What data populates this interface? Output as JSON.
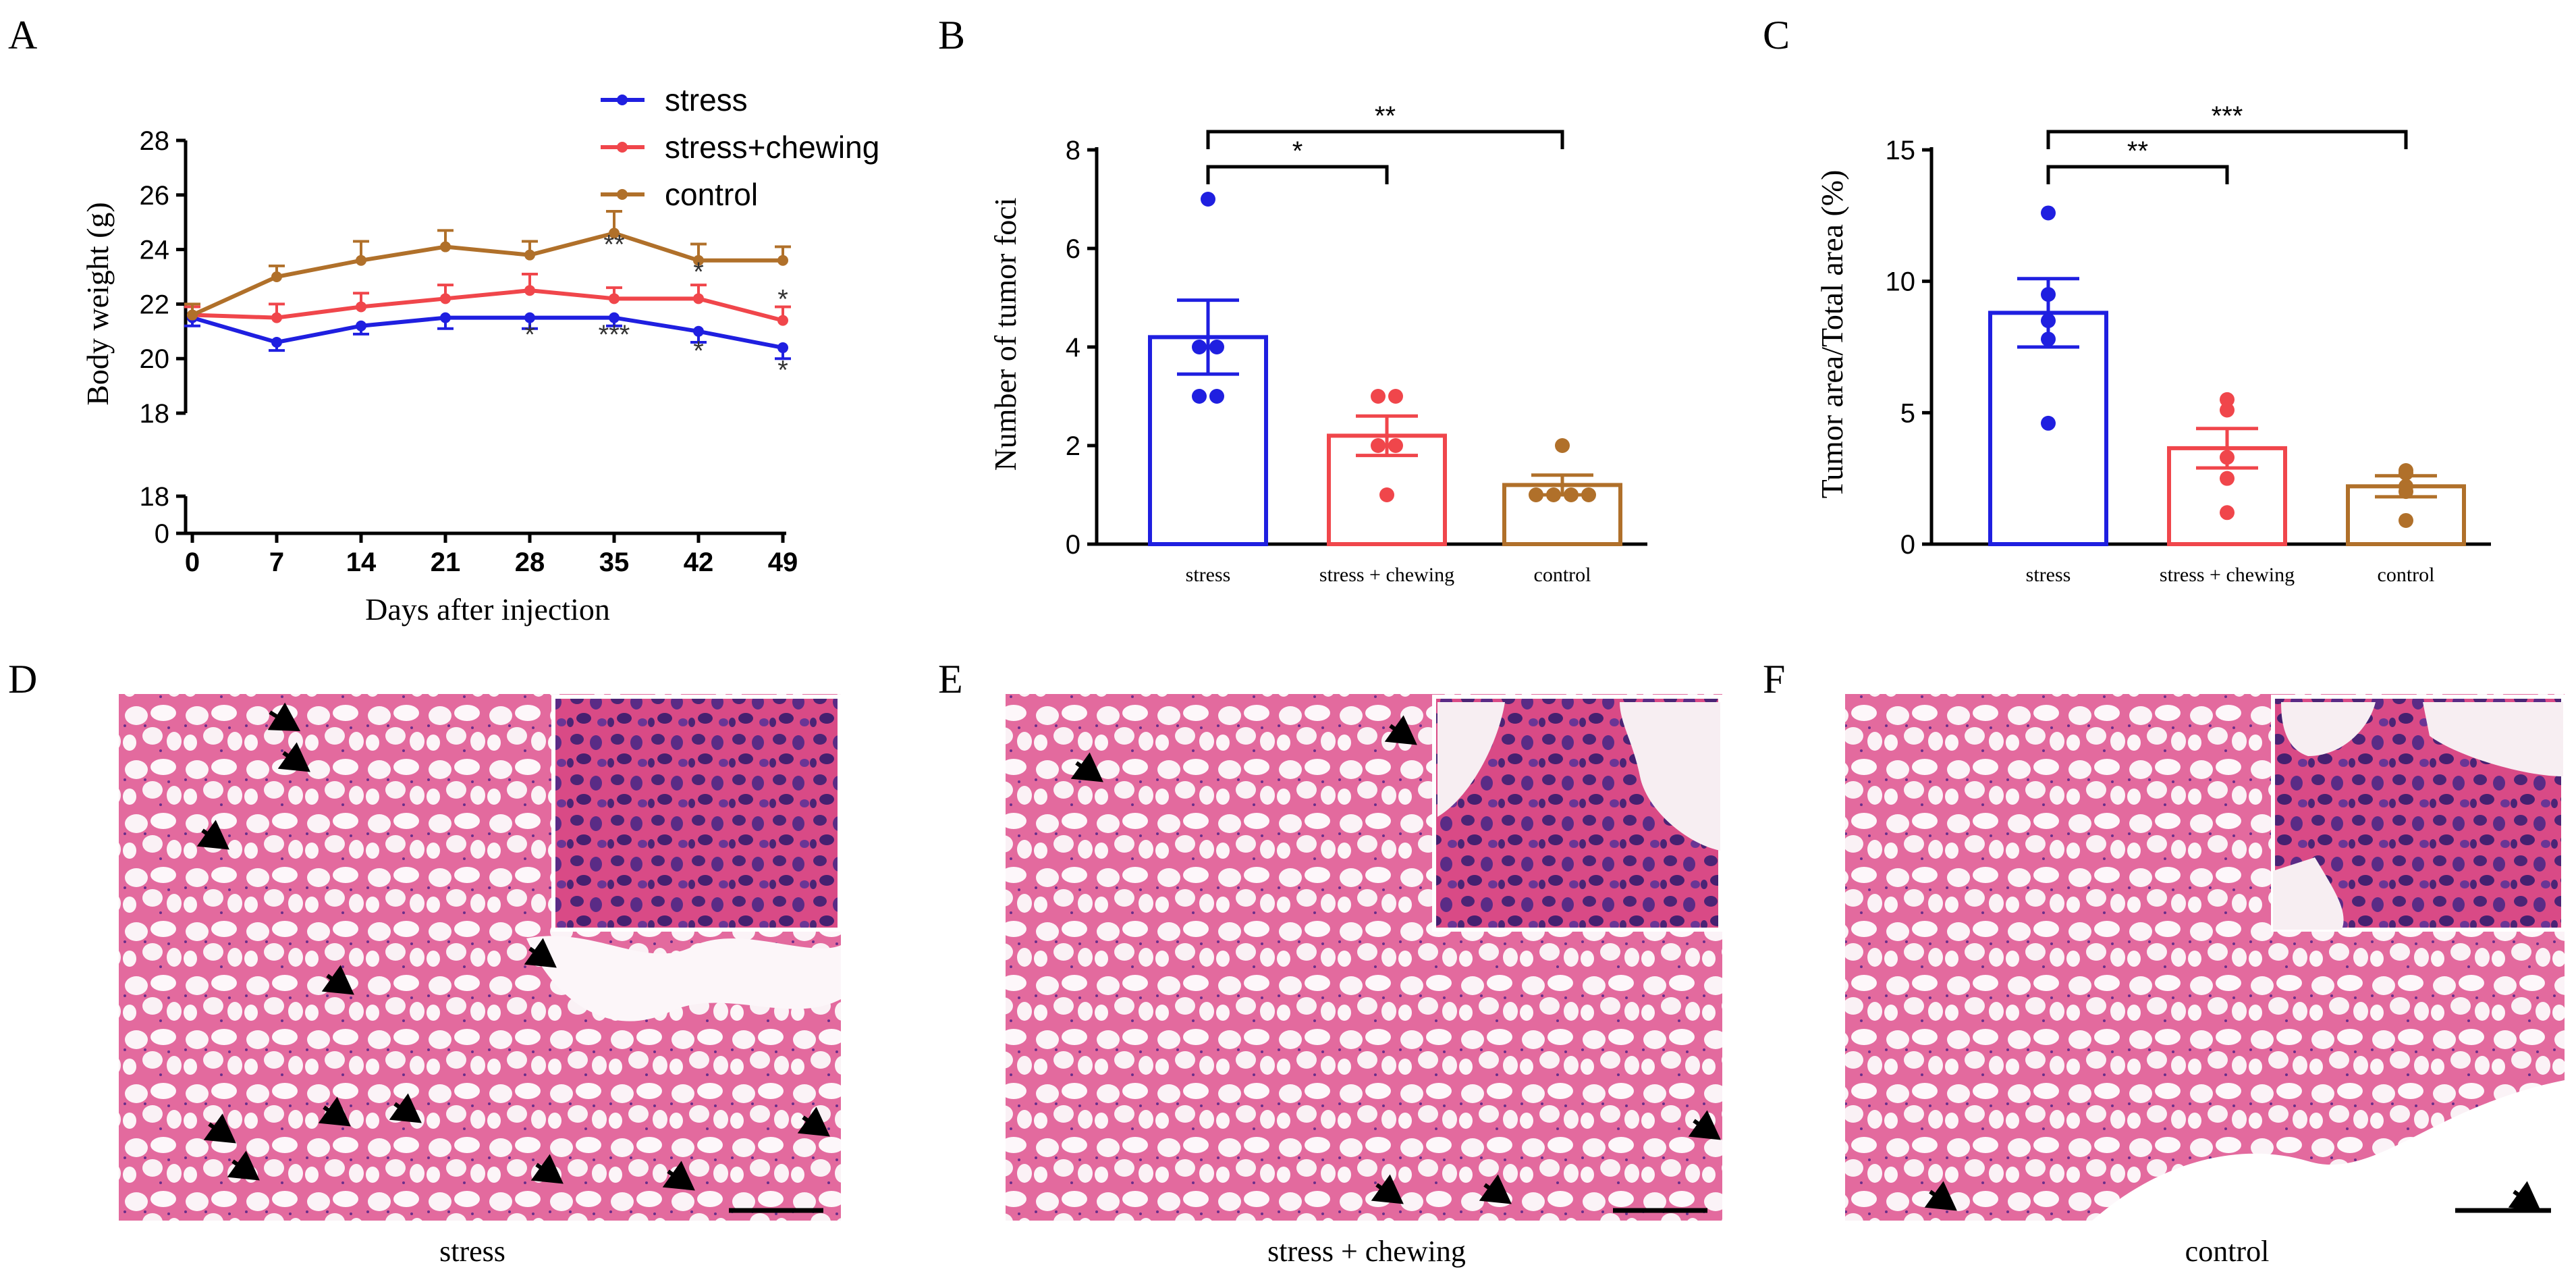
{
  "panels": {
    "A": {
      "letter": "A"
    },
    "B": {
      "letter": "B"
    },
    "C": {
      "letter": "C"
    },
    "D": {
      "letter": "D",
      "caption": "stress"
    },
    "E": {
      "letter": "E",
      "caption": "stress + chewing"
    },
    "F": {
      "letter": "F",
      "caption": "control"
    }
  },
  "colors": {
    "stress": "#1f1fe0",
    "stress_chewing": "#f0464b",
    "control": "#b0702a",
    "axis": "#000000",
    "tissue": "#e86aa0",
    "nuclei": "#5a2a80"
  },
  "chart_data": [
    {
      "id": "A",
      "type": "line",
      "title": "",
      "xlabel": "Days after injection",
      "ylabel": "Body weight (g)",
      "x": [
        0,
        7,
        14,
        21,
        28,
        35,
        42,
        49
      ],
      "xticks": [
        "0",
        "7",
        "14",
        "21",
        "28",
        "35",
        "42",
        "49"
      ],
      "yticks_upper": [
        "20",
        "22",
        "24",
        "26",
        "28"
      ],
      "yticks_lower": [
        "0",
        "18"
      ],
      "yticks_break": "18",
      "ylim": [
        18,
        28
      ],
      "legend_position": "top-right",
      "series": [
        {
          "name": "stress",
          "color_key": "stress",
          "values": [
            21.5,
            20.6,
            21.2,
            21.5,
            21.5,
            21.5,
            21.0,
            20.4
          ],
          "err": [
            0.3,
            0.3,
            0.3,
            0.4,
            0.4,
            0.3,
            0.4,
            0.4
          ]
        },
        {
          "name": "stress+chewing",
          "color_key": "stress_chewing",
          "values": [
            21.6,
            21.5,
            21.9,
            22.2,
            22.5,
            22.2,
            22.2,
            21.4
          ],
          "err": [
            0.3,
            0.5,
            0.5,
            0.5,
            0.6,
            0.4,
            0.5,
            0.5
          ]
        },
        {
          "name": "control",
          "color_key": "control",
          "values": [
            21.6,
            23.0,
            23.6,
            24.1,
            23.8,
            24.6,
            23.6,
            23.6
          ],
          "err": [
            0.4,
            0.4,
            0.7,
            0.6,
            0.5,
            0.8,
            0.6,
            0.5
          ]
        }
      ],
      "annotations": [
        {
          "day": 35,
          "value": 24.2,
          "text": "**"
        },
        {
          "day": 42,
          "value": 23.2,
          "text": "*"
        },
        {
          "day": 49,
          "value": 22.2,
          "text": "*"
        },
        {
          "day": 28,
          "value": 20.9,
          "text": "*"
        },
        {
          "day": 35,
          "value": 20.9,
          "text": "***"
        },
        {
          "day": 42,
          "value": 20.3,
          "text": "*"
        },
        {
          "day": 49,
          "value": 19.6,
          "text": "*"
        }
      ]
    },
    {
      "id": "B",
      "type": "bar",
      "title": "",
      "xlabel": "",
      "ylabel": "Number of tumor foci",
      "categories": [
        "stress",
        "stress + chewing",
        "control"
      ],
      "color_keys": [
        "stress",
        "stress_chewing",
        "control"
      ],
      "values": [
        4.2,
        2.2,
        1.2
      ],
      "err": [
        0.75,
        0.4,
        0.2
      ],
      "points": [
        [
          7,
          4,
          4,
          3,
          3
        ],
        [
          3,
          3,
          2,
          1,
          2
        ],
        [
          2,
          1,
          1,
          1,
          1
        ]
      ],
      "ylim": [
        0,
        8
      ],
      "yticks": [
        "0",
        "2",
        "4",
        "6",
        "8"
      ],
      "significance": [
        {
          "from": 0,
          "to": 1,
          "label": "*",
          "level": 0
        },
        {
          "from": 0,
          "to": 2,
          "label": "**",
          "level": 1
        }
      ]
    },
    {
      "id": "C",
      "type": "bar",
      "title": "",
      "xlabel": "",
      "ylabel": "Tumor area/Total area (%)",
      "categories": [
        "stress",
        "stress + chewing",
        "control"
      ],
      "color_keys": [
        "stress",
        "stress_chewing",
        "control"
      ],
      "values": [
        8.8,
        3.65,
        2.2
      ],
      "err": [
        1.3,
        0.75,
        0.4
      ],
      "points": [
        [
          12.6,
          9.5,
          8.5,
          7.8,
          4.6
        ],
        [
          5.5,
          5.1,
          3.3,
          2.5,
          1.2
        ],
        [
          2.8,
          2.7,
          2.2,
          2.0,
          0.9
        ]
      ],
      "ylim": [
        0,
        15
      ],
      "yticks": [
        "0",
        "5",
        "10",
        "15"
      ],
      "significance": [
        {
          "from": 0,
          "to": 1,
          "label": "**",
          "level": 0
        },
        {
          "from": 0,
          "to": 2,
          "label": "***",
          "level": 1
        }
      ]
    }
  ]
}
